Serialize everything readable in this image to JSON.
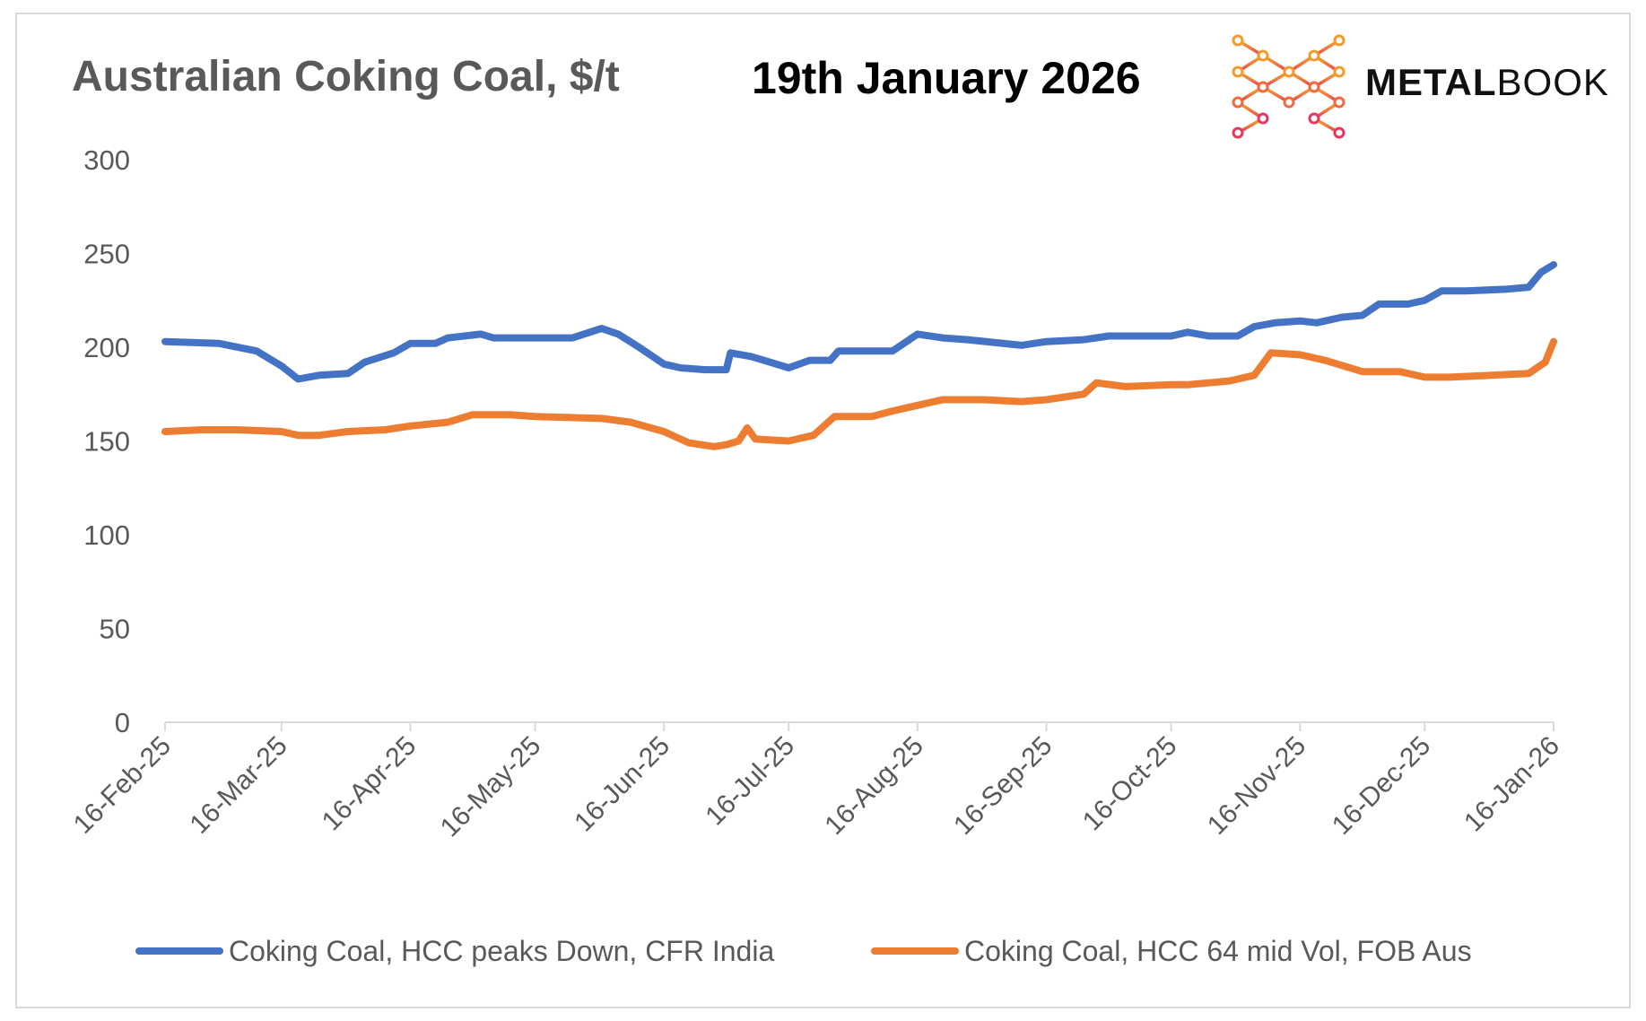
{
  "chart_data": {
    "type": "line",
    "title": "Australian Coking Coal, $/t",
    "subtitle": "19th January 2026",
    "brand": {
      "bold": "METAL",
      "light": "BOOK"
    },
    "xlabel": "",
    "ylabel": "",
    "ylim": [
      0,
      300
    ],
    "yticks": [
      "0",
      "50",
      "100",
      "150",
      "200",
      "250",
      "300"
    ],
    "xticks": [
      "16-Feb-25",
      "16-Mar-25",
      "16-Apr-25",
      "16-May-25",
      "16-Jun-25",
      "16-Jul-25",
      "16-Aug-25",
      "16-Sep-25",
      "16-Oct-25",
      "16-Nov-25",
      "16-Dec-25",
      "16-Jan-26"
    ],
    "xtick_dates": [
      "2025-02-16",
      "2025-03-16",
      "2025-04-16",
      "2025-05-16",
      "2025-06-16",
      "2025-07-16",
      "2025-08-16",
      "2025-09-16",
      "2025-10-16",
      "2025-11-16",
      "2025-12-16",
      "2026-01-16"
    ],
    "xlim": [
      "2025-02-16",
      "2026-01-16"
    ],
    "grid": false,
    "legend_position": "bottom",
    "series": [
      {
        "name": "Coking Coal, HCC peaks Down, CFR India",
        "color": "#4472c4",
        "points": [
          [
            "2025-02-16",
            203
          ],
          [
            "2025-03-01",
            202
          ],
          [
            "2025-03-10",
            198
          ],
          [
            "2025-03-16",
            190
          ],
          [
            "2025-03-20",
            183
          ],
          [
            "2025-03-25",
            185
          ],
          [
            "2025-04-01",
            186
          ],
          [
            "2025-04-05",
            192
          ],
          [
            "2025-04-12",
            197
          ],
          [
            "2025-04-16",
            202
          ],
          [
            "2025-04-22",
            202
          ],
          [
            "2025-04-25",
            205
          ],
          [
            "2025-05-03",
            207
          ],
          [
            "2025-05-06",
            205
          ],
          [
            "2025-05-16",
            205
          ],
          [
            "2025-05-25",
            205
          ],
          [
            "2025-06-01",
            210
          ],
          [
            "2025-06-05",
            207
          ],
          [
            "2025-06-10",
            200
          ],
          [
            "2025-06-16",
            191
          ],
          [
            "2025-06-20",
            189
          ],
          [
            "2025-06-26",
            188
          ],
          [
            "2025-07-01",
            188
          ],
          [
            "2025-07-02",
            197
          ],
          [
            "2025-07-07",
            195
          ],
          [
            "2025-07-10",
            193
          ],
          [
            "2025-07-16",
            189
          ],
          [
            "2025-07-21",
            193
          ],
          [
            "2025-07-26",
            193
          ],
          [
            "2025-07-28",
            198
          ],
          [
            "2025-08-10",
            198
          ],
          [
            "2025-08-16",
            207
          ],
          [
            "2025-08-22",
            205
          ],
          [
            "2025-08-28",
            204
          ],
          [
            "2025-09-10",
            201
          ],
          [
            "2025-09-16",
            203
          ],
          [
            "2025-09-25",
            204
          ],
          [
            "2025-10-01",
            206
          ],
          [
            "2025-10-16",
            206
          ],
          [
            "2025-10-20",
            208
          ],
          [
            "2025-10-25",
            206
          ],
          [
            "2025-11-01",
            206
          ],
          [
            "2025-11-05",
            211
          ],
          [
            "2025-11-10",
            213
          ],
          [
            "2025-11-16",
            214
          ],
          [
            "2025-11-20",
            213
          ],
          [
            "2025-11-26",
            216
          ],
          [
            "2025-12-01",
            217
          ],
          [
            "2025-12-05",
            223
          ],
          [
            "2025-12-12",
            223
          ],
          [
            "2025-12-16",
            225
          ],
          [
            "2025-12-20",
            230
          ],
          [
            "2025-12-26",
            230
          ],
          [
            "2026-01-05",
            231
          ],
          [
            "2026-01-10",
            232
          ],
          [
            "2026-01-13",
            240
          ],
          [
            "2026-01-16",
            244
          ]
        ]
      },
      {
        "name": "Coking Coal, HCC 64 mid Vol, FOB Aus",
        "color": "#ed7d31",
        "points": [
          [
            "2025-02-16",
            155
          ],
          [
            "2025-02-25",
            156
          ],
          [
            "2025-03-05",
            156
          ],
          [
            "2025-03-16",
            155
          ],
          [
            "2025-03-20",
            153
          ],
          [
            "2025-03-25",
            153
          ],
          [
            "2025-04-01",
            155
          ],
          [
            "2025-04-10",
            156
          ],
          [
            "2025-04-16",
            158
          ],
          [
            "2025-04-25",
            160
          ],
          [
            "2025-05-01",
            164
          ],
          [
            "2025-05-10",
            164
          ],
          [
            "2025-05-16",
            163
          ],
          [
            "2025-06-01",
            162
          ],
          [
            "2025-06-08",
            160
          ],
          [
            "2025-06-16",
            155
          ],
          [
            "2025-06-22",
            149
          ],
          [
            "2025-06-28",
            147
          ],
          [
            "2025-07-01",
            148
          ],
          [
            "2025-07-04",
            150
          ],
          [
            "2025-07-06",
            157
          ],
          [
            "2025-07-08",
            151
          ],
          [
            "2025-07-16",
            150
          ],
          [
            "2025-07-22",
            153
          ],
          [
            "2025-07-27",
            163
          ],
          [
            "2025-08-05",
            163
          ],
          [
            "2025-08-10",
            166
          ],
          [
            "2025-08-16",
            169
          ],
          [
            "2025-08-22",
            172
          ],
          [
            "2025-09-01",
            172
          ],
          [
            "2025-09-10",
            171
          ],
          [
            "2025-09-16",
            172
          ],
          [
            "2025-09-25",
            175
          ],
          [
            "2025-09-28",
            181
          ],
          [
            "2025-10-05",
            179
          ],
          [
            "2025-10-16",
            180
          ],
          [
            "2025-10-20",
            180
          ],
          [
            "2025-10-30",
            182
          ],
          [
            "2025-11-05",
            185
          ],
          [
            "2025-11-09",
            197
          ],
          [
            "2025-11-16",
            196
          ],
          [
            "2025-11-22",
            193
          ],
          [
            "2025-12-01",
            187
          ],
          [
            "2025-12-10",
            187
          ],
          [
            "2025-12-16",
            184
          ],
          [
            "2025-12-22",
            184
          ],
          [
            "2026-01-01",
            185
          ],
          [
            "2026-01-10",
            186
          ],
          [
            "2026-01-14",
            192
          ],
          [
            "2026-01-16",
            203
          ]
        ]
      }
    ]
  }
}
